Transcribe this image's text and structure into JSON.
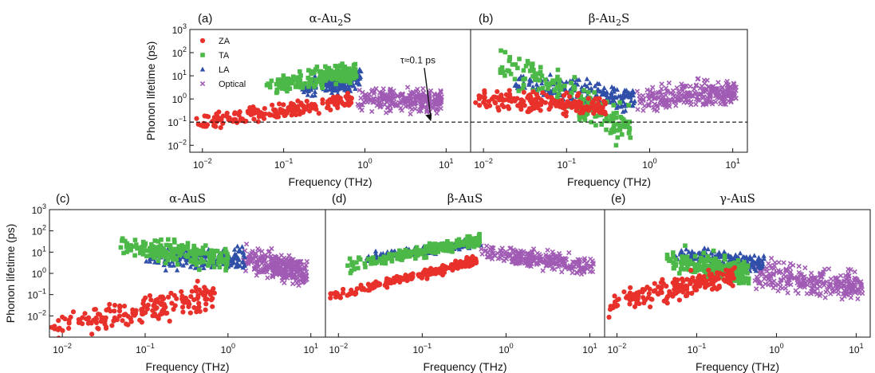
{
  "chart_data": [
    {
      "panel": "(a)",
      "type": "scatter",
      "title_prefix": "α-Au",
      "title_sub": "2",
      "title_suffix": "S",
      "xlabel": "Frequency (THz)",
      "ylabel": "Phonon lifetime (ps)",
      "xscale": "log",
      "yscale": "log",
      "xlim": [
        0.007,
        20
      ],
      "ylim": [
        0.005,
        1000
      ],
      "xticks": [
        "10^-2",
        "10^-1",
        "10^0",
        "10^1"
      ],
      "yticks": [
        "10^-2",
        "10^-1",
        "10^0",
        "10^1",
        "10^2",
        "10^3"
      ],
      "reference_line": {
        "y": 0.1,
        "style": "dashed"
      },
      "annotation": "τ≈0.1 ps",
      "legend": {
        "position": "top-left",
        "entries": [
          "ZA",
          "TA",
          "LA",
          "Optical"
        ]
      },
      "series": [
        {
          "name": "ZA",
          "color": "#e8312a",
          "marker": "circle",
          "freq_range": [
            0.008,
            0.75
          ],
          "tau_at_min": 0.08,
          "tau_at_max": 0.9,
          "spread_dec": 0.5
        },
        {
          "name": "TA",
          "color": "#4cb848",
          "marker": "square",
          "freq_range": [
            0.06,
            0.8
          ],
          "tau_at_min": 3,
          "tau_at_max": 15,
          "spread_dec": 0.6
        },
        {
          "name": "LA",
          "color": "#2f4fa8",
          "marker": "triangle",
          "freq_range": [
            0.15,
            0.9
          ],
          "tau_at_min": 3,
          "tau_at_max": 8,
          "spread_dec": 0.6
        },
        {
          "name": "Optical",
          "color": "#a05bb4",
          "marker": "x",
          "freq_range": [
            0.8,
            9
          ],
          "tau_at_min": 1,
          "tau_at_max": 0.8,
          "spread_dec": 0.7
        }
      ]
    },
    {
      "panel": "(b)",
      "type": "scatter",
      "title_prefix": "β-Au",
      "title_sub": "2",
      "title_suffix": "S",
      "xlabel": "Frequency (THz)",
      "xscale": "log",
      "yscale": "log",
      "xlim": [
        0.007,
        15
      ],
      "ylim": [
        0.005,
        1000
      ],
      "xticks": [
        "10^-2",
        "10^-1",
        "10^0",
        "10^1"
      ],
      "reference_line": {
        "y": 0.1,
        "style": "dashed"
      },
      "series": [
        {
          "name": "ZA",
          "color": "#e8312a",
          "marker": "circle",
          "freq_range": [
            0.008,
            0.3
          ],
          "tau_at_min": 1,
          "tau_at_max": 0.5,
          "spread_dec": 0.6
        },
        {
          "name": "TA",
          "color": "#4cb848",
          "marker": "square",
          "freq_range": [
            0.015,
            0.6
          ],
          "tau_at_min": 50,
          "tau_at_max": 0.05,
          "spread_dec": 1.2
        },
        {
          "name": "LA",
          "color": "#2f4fa8",
          "marker": "triangle",
          "freq_range": [
            0.02,
            0.7
          ],
          "tau_at_min": 5,
          "tau_at_max": 1,
          "spread_dec": 0.8
        },
        {
          "name": "Optical",
          "color": "#a05bb4",
          "marker": "x",
          "freq_range": [
            0.7,
            11
          ],
          "tau_at_min": 1,
          "tau_at_max": 2,
          "spread_dec": 0.8
        }
      ]
    },
    {
      "panel": "(c)",
      "type": "scatter",
      "title_prefix": "α-AuS",
      "title_sub": "",
      "title_suffix": "",
      "xlabel": "Frequency (THz)",
      "ylabel": "Phonon lifetime (ps)",
      "xscale": "log",
      "yscale": "log",
      "xlim": [
        0.007,
        15
      ],
      "ylim": [
        0.001,
        1000
      ],
      "xticks": [
        "10^-2",
        "10^-1",
        "10^0",
        "10^1"
      ],
      "yticks": [
        "10^-2",
        "10^-1",
        "10^0",
        "10^1",
        "10^2",
        "10^3"
      ],
      "series": [
        {
          "name": "ZA",
          "color": "#e8312a",
          "marker": "circle",
          "freq_range": [
            0.007,
            0.7
          ],
          "tau_at_min": 0.002,
          "tau_at_max": 0.1,
          "spread_dec": 1.0
        },
        {
          "name": "TA",
          "color": "#4cb848",
          "marker": "square",
          "freq_range": [
            0.05,
            1.0
          ],
          "tau_at_min": 20,
          "tau_at_max": 5,
          "spread_dec": 0.8
        },
        {
          "name": "LA",
          "color": "#2f4fa8",
          "marker": "triangle",
          "freq_range": [
            0.1,
            1.6
          ],
          "tau_at_min": 5,
          "tau_at_max": 5,
          "spread_dec": 0.7
        },
        {
          "name": "Optical",
          "color": "#a05bb4",
          "marker": "x",
          "freq_range": [
            1.5,
            9
          ],
          "tau_at_min": 5,
          "tau_at_max": 1,
          "spread_dec": 0.9
        }
      ]
    },
    {
      "panel": "(d)",
      "type": "scatter",
      "title_prefix": "β-AuS",
      "title_sub": "",
      "title_suffix": "",
      "xlabel": "Frequency (THz)",
      "xscale": "log",
      "yscale": "log",
      "xlim": [
        0.007,
        15
      ],
      "ylim": [
        0.001,
        1000
      ],
      "xticks": [
        "10^-2",
        "10^-1",
        "10^0",
        "10^1"
      ],
      "series": [
        {
          "name": "ZA",
          "color": "#e8312a",
          "marker": "circle",
          "freq_range": [
            0.008,
            0.45
          ],
          "tau_at_min": 0.08,
          "tau_at_max": 4,
          "spread_dec": 0.3
        },
        {
          "name": "TA",
          "color": "#4cb848",
          "marker": "square",
          "freq_range": [
            0.012,
            0.5
          ],
          "tau_at_min": 2,
          "tau_at_max": 40,
          "spread_dec": 0.4
        },
        {
          "name": "LA",
          "color": "#2f4fa8",
          "marker": "triangle",
          "freq_range": [
            0.02,
            0.5
          ],
          "tau_at_min": 5,
          "tau_at_max": 30,
          "spread_dec": 0.3
        },
        {
          "name": "Optical",
          "color": "#a05bb4",
          "marker": "x",
          "freq_range": [
            0.5,
            11
          ],
          "tau_at_min": 10,
          "tau_at_max": 2,
          "spread_dec": 0.6
        }
      ]
    },
    {
      "panel": "(e)",
      "type": "scatter",
      "title_prefix": "γ-AuS",
      "title_sub": "",
      "title_suffix": "",
      "xlabel": "Frequency (THz)",
      "xscale": "log",
      "yscale": "log",
      "xlim": [
        0.007,
        15
      ],
      "ylim": [
        0.001,
        1000
      ],
      "xticks": [
        "10^-2",
        "10^-1",
        "10^0",
        "10^1"
      ],
      "series": [
        {
          "name": "ZA",
          "color": "#e8312a",
          "marker": "circle",
          "freq_range": [
            0.007,
            0.3
          ],
          "tau_at_min": 0.03,
          "tau_at_max": 1,
          "spread_dec": 0.8
        },
        {
          "name": "TA",
          "color": "#4cb848",
          "marker": "square",
          "freq_range": [
            0.04,
            0.45
          ],
          "tau_at_min": 5,
          "tau_at_max": 1,
          "spread_dec": 0.8
        },
        {
          "name": "LA",
          "color": "#2f4fa8",
          "marker": "triangle",
          "freq_range": [
            0.05,
            0.7
          ],
          "tau_at_min": 8,
          "tau_at_max": 3,
          "spread_dec": 0.6
        },
        {
          "name": "Optical",
          "color": "#a05bb4",
          "marker": "x",
          "freq_range": [
            0.5,
            12
          ],
          "tau_at_min": 1,
          "tau_at_max": 0.2,
          "spread_dec": 1.0
        }
      ]
    }
  ]
}
